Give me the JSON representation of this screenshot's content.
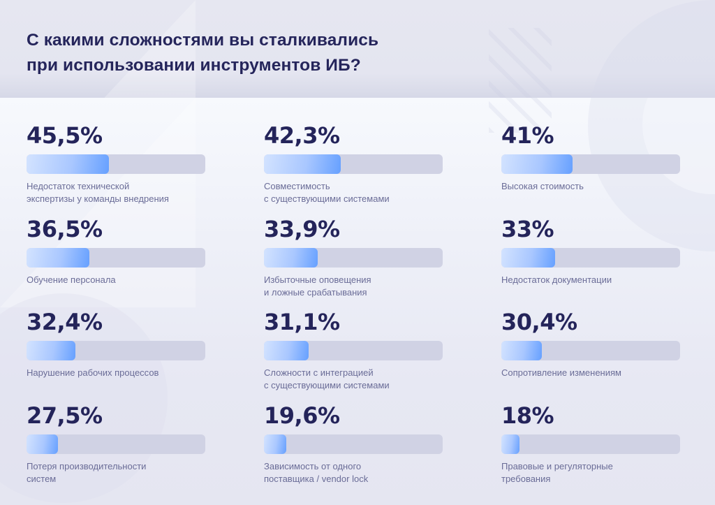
{
  "title": {
    "lines": [
      "С какими сложностями вы сталкивались",
      "при использовании инструментов ИБ?"
    ]
  },
  "colors": {
    "text_dark": "#24245a",
    "label": "#6a6c97",
    "track": "#d0d2e4",
    "fill_start": "#d3e3ff",
    "fill_end": "#66a0ff"
  },
  "chart_data": {
    "type": "bar",
    "title": "С какими сложностями вы сталкивались при использовании инструментов ИБ?",
    "unit": "%",
    "items": [
      {
        "value_label": "45,5%",
        "value": 45.5,
        "bar_fill": 0.46,
        "label_lines": [
          "Недостаток технической",
          "экспертизы у команды внедрения"
        ]
      },
      {
        "value_label": "42,3%",
        "value": 42.3,
        "bar_fill": 0.43,
        "label_lines": [
          "Совместимость",
          "с существующими системами"
        ]
      },
      {
        "value_label": "41%",
        "value": 41,
        "bar_fill": 0.4,
        "label_lines": [
          "Высокая стоимость"
        ]
      },
      {
        "value_label": "36,5%",
        "value": 36.5,
        "bar_fill": 0.35,
        "label_lines": [
          "Обучение персонала"
        ]
      },
      {
        "value_label": "33,9%",
        "value": 33.9,
        "bar_fill": 0.3,
        "label_lines": [
          "Избыточные оповещения",
          "и ложные срабатывания"
        ]
      },
      {
        "value_label": "33%",
        "value": 33,
        "bar_fill": 0.3,
        "label_lines": [
          "Недостаток документации"
        ]
      },
      {
        "value_label": "32,4%",
        "value": 32.4,
        "bar_fill": 0.275,
        "label_lines": [
          "Нарушение рабочих процессов"
        ]
      },
      {
        "value_label": "31,1%",
        "value": 31.1,
        "bar_fill": 0.25,
        "label_lines": [
          "Сложности с интеграцией",
          "с существующими системами"
        ]
      },
      {
        "value_label": "30,4%",
        "value": 30.4,
        "bar_fill": 0.225,
        "label_lines": [
          "Сопротивление изменениям"
        ]
      },
      {
        "value_label": "27,5%",
        "value": 27.5,
        "bar_fill": 0.175,
        "label_lines": [
          "Потеря производительности",
          "систем"
        ]
      },
      {
        "value_label": "19,6%",
        "value": 19.6,
        "bar_fill": 0.125,
        "label_lines": [
          "Зависимость от одного",
          "поставщика / vendor lock"
        ]
      },
      {
        "value_label": "18%",
        "value": 18,
        "bar_fill": 0.1,
        "label_lines": [
          "Правовые и регуляторные",
          "требования"
        ]
      }
    ]
  }
}
